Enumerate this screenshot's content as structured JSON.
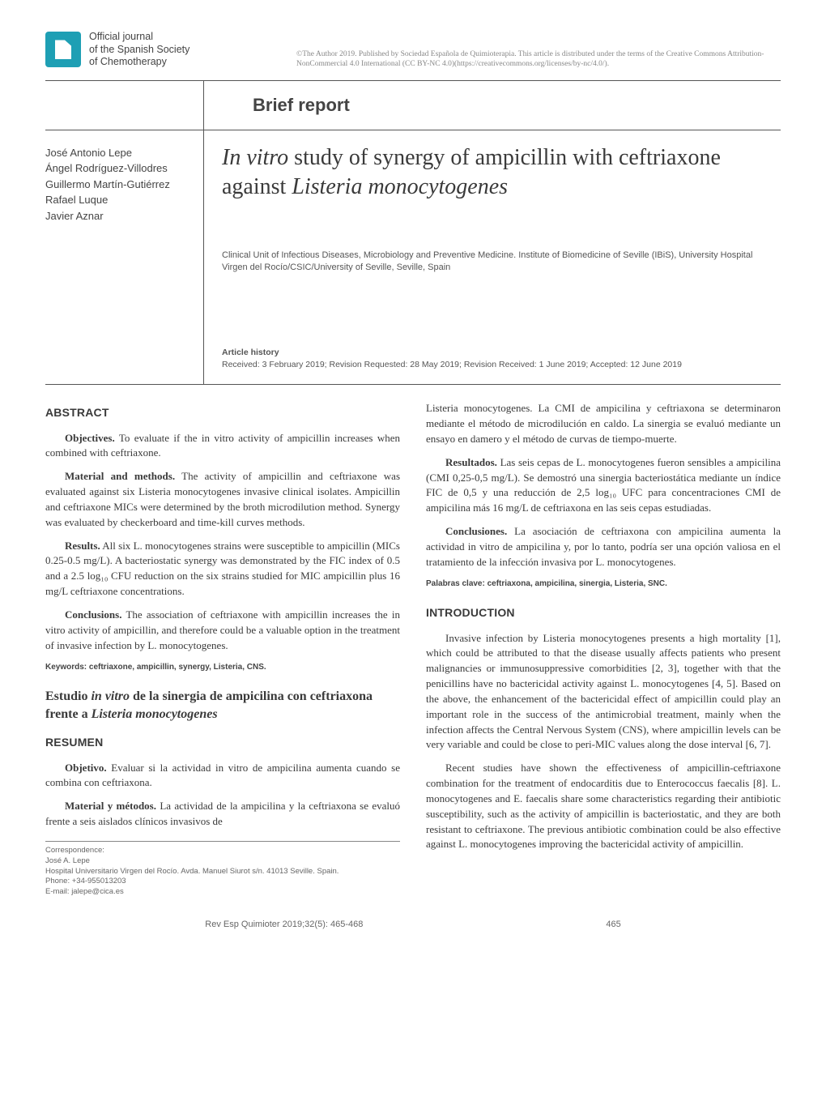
{
  "copyright": "©The Author 2019. Published by Sociedad Española de Quimioterapia. This article is distributed under the terms of the Creative Commons Attribution-NonCommercial 4.0 International (CC BY-NC 4.0)(https://creativecommons.org/licenses/by-nc/4.0/).",
  "logo": {
    "line1": "Official journal",
    "line2": "of the Spanish Society",
    "line3": "of Chemotherapy"
  },
  "brief_report": "Brief report",
  "authors": [
    "José Antonio Lepe",
    "Ángel Rodríguez-Villodres",
    "Guillermo Martín-Gutiérrez",
    "Rafael Luque",
    "Javier Aznar"
  ],
  "title_pre_italic": "In vitro",
  "title_mid": " study of synergy of ampicillin with ceftriaxone against ",
  "title_post_italic": "Listeria monocytogenes",
  "affiliation": "Clinical Unit of Infectious Diseases, Microbiology and Preventive Medicine. Institute of Biomedicine of Seville (IBiS), University Hospital Virgen del Rocío/CSIC/University of Seville, Seville, Spain",
  "history_label": "Article history",
  "history_text": "Received: 3 February 2019; Revision Requested: 28 May 2019; Revision Received: 1 June 2019; Accepted: 12 June 2019",
  "left": {
    "abstract_heading": "ABSTRACT",
    "p1_lead": "Objectives.",
    "p1": " To evaluate if the in vitro activity of ampicillin increases when combined with ceftriaxone.",
    "p2_lead": "Material and methods.",
    "p2": " The activity of ampicillin and ceftriaxone was evaluated against six Listeria monocytogenes invasive clinical isolates. Ampicillin and ceftriaxone MICs were determined by the broth microdilution method. Synergy was evaluated by checkerboard and time-kill curves methods.",
    "p3_lead": "Results.",
    "p3": " All six L. monocytogenes strains were susceptible to ampicillin (MICs 0.25-0.5 mg/L). A bacteriostatic synergy was demonstrated by the FIC index of 0.5 and a 2.5 log₁₀ CFU reduction on the six strains studied for MIC ampicillin plus 16 mg/L ceftriaxone concentrations.",
    "p4_lead": "Conclusions.",
    "p4": " The association of ceftriaxone with ampicillin increases the in vitro activity of ampicillin, and therefore could be a valuable option in the treatment of invasive infection by L. monocytogenes.",
    "keywords": "Keywords: ceftriaxone, ampicillin, synergy, Listeria, CNS.",
    "es_title_pre": "Estudio ",
    "es_title_it1": "in vitro",
    "es_title_mid": " de la sinergia de ampicilina con ceftriaxona frente a ",
    "es_title_it2": "Listeria monocytogenes",
    "resumen_heading": "RESUMEN",
    "es_p1_lead": "Objetivo.",
    "es_p1": " Evaluar si la actividad in vitro de ampicilina aumenta cuando se combina con ceftriaxona.",
    "es_p2_lead": "Material y métodos.",
    "es_p2": " La actividad de la ampicilina y la ceftriaxona se evaluó frente a seis aislados clínicos invasivos de",
    "corr_l1": "Correspondence:",
    "corr_l2": "José A. Lepe",
    "corr_l3": "Hospital Universitario Virgen del Rocío. Avda. Manuel Siurot s/n. 41013 Seville. Spain.",
    "corr_l4": "Phone: +34-955013203",
    "corr_l5": "E-mail: jalepe@cica.es"
  },
  "right": {
    "p0": "Listeria monocytogenes. La CMI de ampicilina y ceftriaxona se determinaron mediante el método de microdilución en caldo. La sinergia se evaluó mediante un ensayo en damero y el método de curvas de tiempo-muerte.",
    "p1_lead": "Resultados.",
    "p1": " Las seis cepas de L. monocytogenes fueron sensibles a ampicilina (CMI 0,25-0,5 mg/L). Se demostró una sinergia bacteriostática mediante un índice FIC de 0,5 y una reducción de 2,5 log₁₀ UFC para concentraciones CMI de ampicilina más 16 mg/L de ceftriaxona en las seis cepas estudiadas.",
    "p2_lead": "Conclusiones.",
    "p2": " La asociación de ceftriaxona con ampicilina aumenta la actividad in vitro de ampicilina y, por lo tanto, podría ser una opción valiosa en el tratamiento de la infección invasiva por L. monocytogenes.",
    "keywords": "Palabras clave: ceftriaxona, ampicilina, sinergia, Listeria, SNC.",
    "intro_heading": "INTRODUCTION",
    "intro_p1": "Invasive infection by Listeria monocytogenes presents a high mortality [1], which could be attributed to that the disease usually affects patients who present malignancies or immunosuppressive comorbidities [2, 3], together with that the penicillins have no bactericidal activity against L. monocytogenes [4, 5]. Based on the above, the enhancement of the bactericidal effect of ampicillin could play an important role in the success of the antimicrobial treatment, mainly when the infection affects the Central Nervous System (CNS), where ampicillin levels can be very variable and could be close to peri-MIC values along the dose interval [6, 7].",
    "intro_p2": "Recent studies have shown the effectiveness of ampicillin-ceftriaxone combination for the treatment of endocarditis due to Enterococcus faecalis [8]. L. monocytogenes and E. faecalis share some characteristics regarding their antibiotic susceptibility, such as the activity of ampicillin is bacteriostatic, and they are both resistant to ceftriaxone. The previous antibiotic combination could be also effective against L. monocytogenes improving the bactericidal activity of ampicillin."
  },
  "footer": {
    "citation": "Rev Esp Quimioter 2019;32(5): 465-468",
    "page": "465"
  }
}
